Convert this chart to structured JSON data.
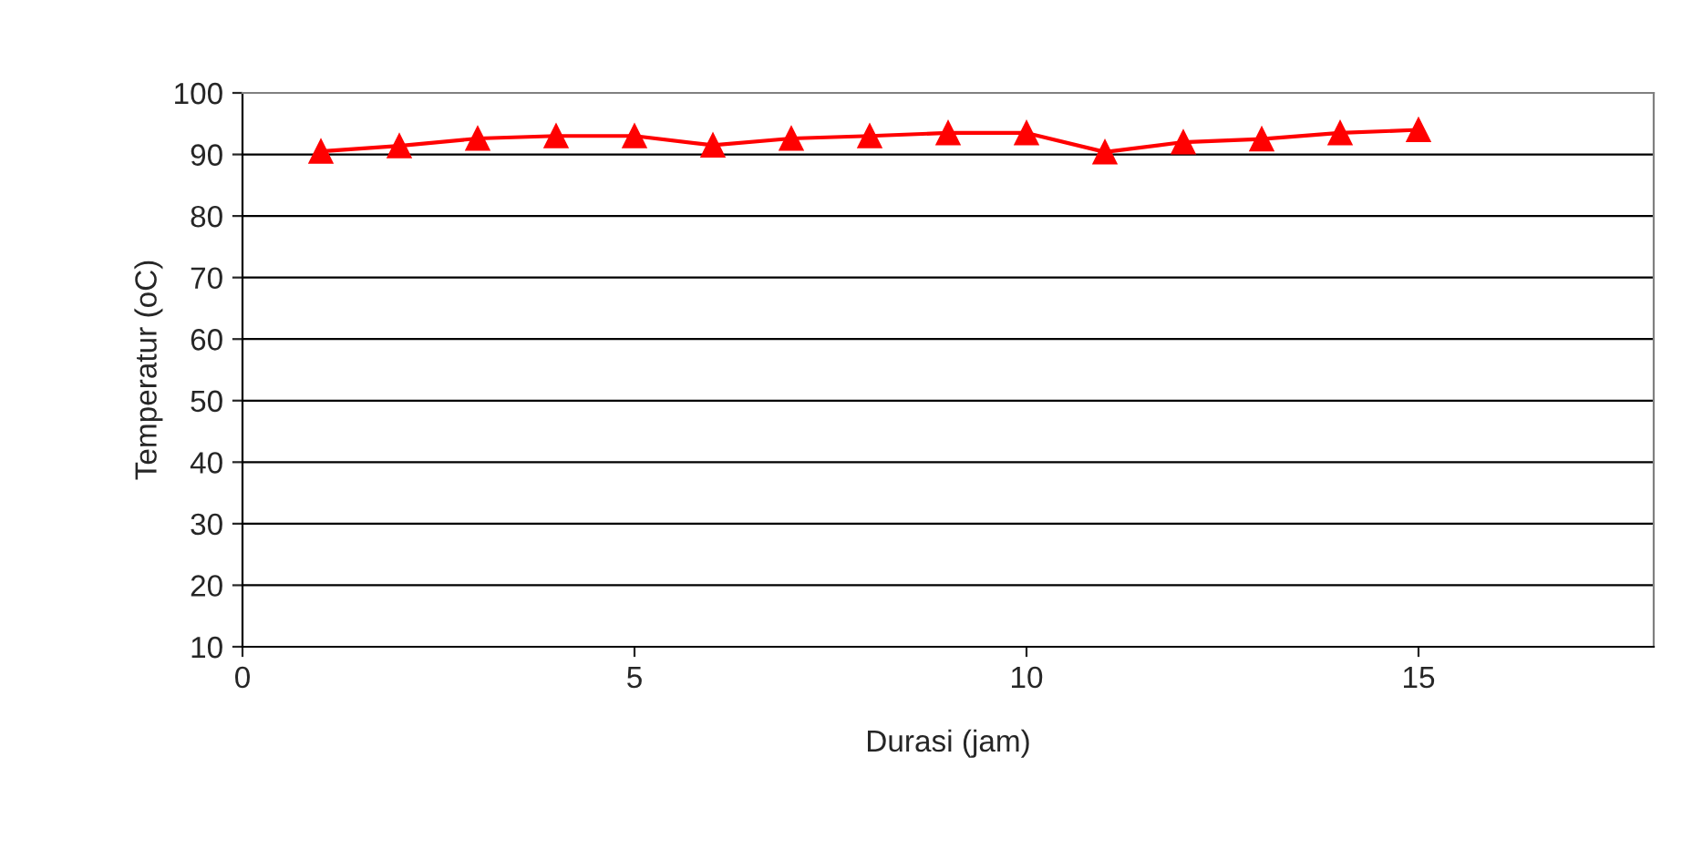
{
  "chart_data": {
    "type": "line",
    "xlabel": "Durasi (jam)",
    "ylabel": "Temperatur (oC)",
    "x": [
      1,
      2,
      3,
      4,
      5,
      6,
      7,
      8,
      9,
      10,
      11,
      12,
      13,
      14,
      15
    ],
    "series": [
      {
        "color": "#ff0000",
        "values": [
          90.5,
          91.4,
          92.6,
          93,
          93,
          91.5,
          92.6,
          93,
          93.5,
          93.5,
          90.4,
          92,
          92.5,
          93.5,
          94
        ]
      }
    ],
    "xlim": [
      0,
      18
    ],
    "xticks": [
      0,
      5,
      10,
      15
    ],
    "ylim": [
      10,
      100
    ],
    "yticks": [
      10,
      20,
      30,
      40,
      50,
      60,
      70,
      80,
      90,
      100
    ],
    "grid": "y",
    "marker": "triangle",
    "line_style": "solid",
    "legend": false
  }
}
